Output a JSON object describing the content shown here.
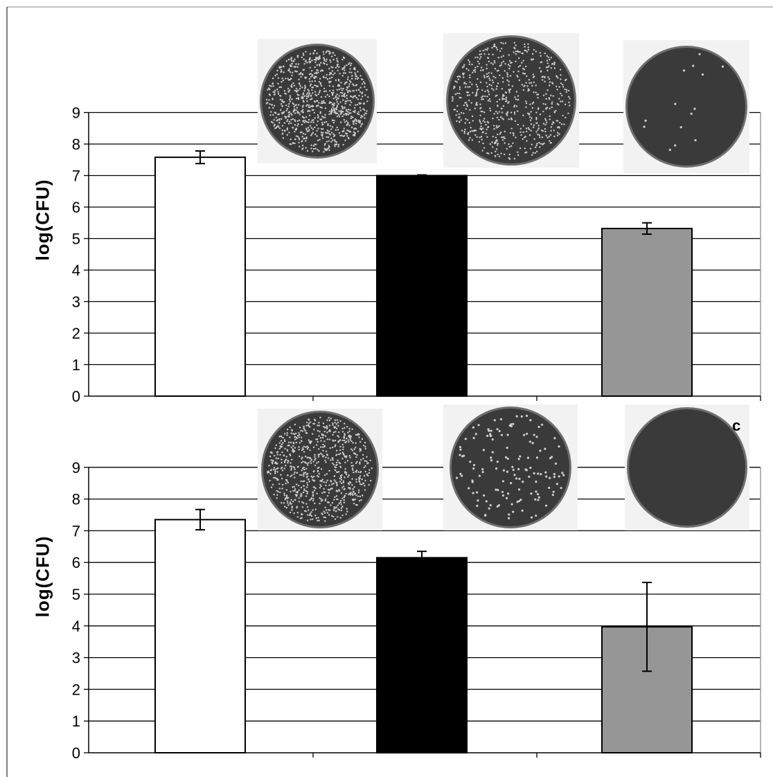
{
  "panel_letters": [
    "c"
  ],
  "colors": {
    "bar_fills": [
      "#ffffff",
      "#000000",
      "#969696"
    ],
    "gridline": "#000000",
    "axis": "#000000",
    "plate_background": "#f2f2f2",
    "plate_agar": "#3a3a3a",
    "colony": "#cfcfcf"
  },
  "chart_data": [
    {
      "type": "bar",
      "categories": [
        "",
        "",
        ""
      ],
      "values": [
        7.58,
        7.0,
        5.32
      ],
      "error": [
        0.2,
        0.02,
        0.18
      ],
      "ylabel": "log(CFU)",
      "xlabel": "",
      "ylim": [
        0,
        9
      ],
      "yticks": [
        "0",
        "1",
        "2",
        "3",
        "4",
        "5",
        "6",
        "7",
        "8",
        "9"
      ],
      "grid": true,
      "legend": "none",
      "plate_images": 3
    },
    {
      "type": "bar",
      "categories": [
        "",
        "",
        ""
      ],
      "values": [
        7.35,
        6.15,
        3.97
      ],
      "error": [
        0.32,
        0.2,
        1.4
      ],
      "ylabel": "log(CFU)",
      "xlabel": "",
      "ylim": [
        0,
        9
      ],
      "yticks": [
        "0",
        "1",
        "2",
        "3",
        "4",
        "5",
        "6",
        "7",
        "8",
        "9"
      ],
      "grid": true,
      "legend": "none",
      "plate_images": 3
    }
  ]
}
